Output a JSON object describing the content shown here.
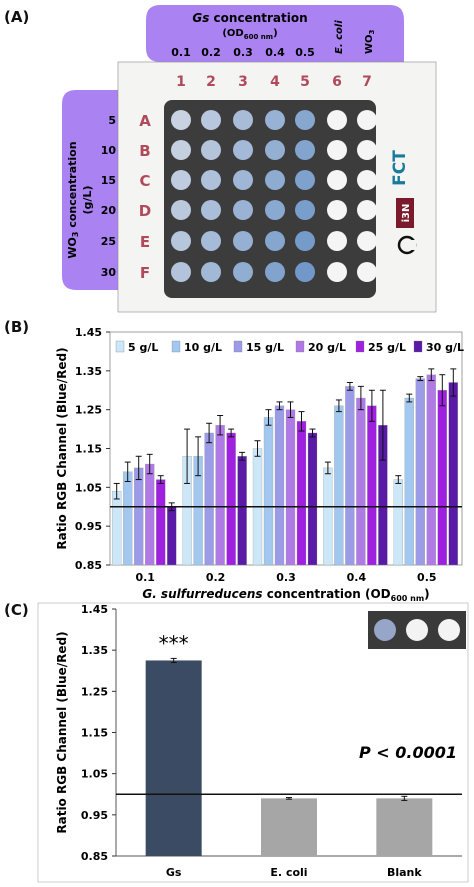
{
  "panels": {
    "a": "(A)",
    "b": "(B)",
    "c": "(C)"
  },
  "plate": {
    "top_title": "Gs concentration",
    "top_title_italic": "Gs",
    "top_title_rest": " concentration",
    "top_unit": "(OD",
    "top_unit_sub": "600 nm",
    "top_unit_close": ")",
    "top_values": [
      "0.1",
      "0.2",
      "0.3",
      "0.4",
      "0.5"
    ],
    "ecoli_label": "E. coli",
    "wo3_label": "WO",
    "wo3_sub": "3",
    "side_title": "WO",
    "side_title_sub": "3",
    "side_title_rest": " concentration",
    "side_title_unit": "(g/L)",
    "side_values": [
      "5",
      "10",
      "15",
      "20",
      "25",
      "30"
    ],
    "column_numbers": [
      "1",
      "2",
      "3",
      "4",
      "5",
      "6",
      "7"
    ],
    "row_letters": [
      "A",
      "B",
      "C",
      "D",
      "E",
      "F"
    ],
    "logo_1": "FCT",
    "logo_2": "i3N",
    "colors": {
      "purple": "#9b6cf0",
      "plate": "#3c3c3c",
      "label_red": "#b04a5a"
    }
  },
  "chart_data": [
    {
      "type": "bar",
      "ylabel": "Ratio RGB Channel (Blue/Red)",
      "xlabel_italic": "G. sulfurreducens",
      "xlabel_rest": " concentration (OD",
      "xlabel_sub": "600 nm",
      "xlabel_close": ")",
      "categories": [
        "0.1",
        "0.2",
        "0.3",
        "0.4",
        "0.5"
      ],
      "ylim": [
        0.85,
        1.45
      ],
      "yticks": [
        "0.85",
        "0.95",
        "1.05",
        "1.15",
        "1.25",
        "1.35",
        "1.45"
      ],
      "reference_line": 1.0,
      "legend_position": "top",
      "series": [
        {
          "name": "5 g/L",
          "color": "#cce7f7",
          "values": [
            1.04,
            1.13,
            1.15,
            1.1,
            1.07
          ],
          "errors": [
            0.02,
            0.07,
            0.02,
            0.015,
            0.01
          ]
        },
        {
          "name": "10 g/L",
          "color": "#a3c8ef",
          "values": [
            1.09,
            1.13,
            1.23,
            1.26,
            1.28
          ],
          "errors": [
            0.025,
            0.05,
            0.02,
            0.015,
            0.01
          ]
        },
        {
          "name": "15 g/L",
          "color": "#9b9be8",
          "values": [
            1.1,
            1.19,
            1.26,
            1.31,
            1.33
          ],
          "errors": [
            0.03,
            0.025,
            0.01,
            0.01,
            0.005
          ]
        },
        {
          "name": "20 g/L",
          "color": "#b07ae6",
          "values": [
            1.11,
            1.21,
            1.25,
            1.28,
            1.34
          ],
          "errors": [
            0.025,
            0.025,
            0.02,
            0.03,
            0.015
          ]
        },
        {
          "name": "25 g/L",
          "color": "#a020e0",
          "values": [
            1.07,
            1.19,
            1.22,
            1.26,
            1.3
          ],
          "errors": [
            0.01,
            0.01,
            0.025,
            0.04,
            0.04
          ]
        },
        {
          "name": "30 g/L",
          "color": "#5a1aa8",
          "values": [
            1.0,
            1.13,
            1.19,
            1.21,
            1.32
          ],
          "errors": [
            0.01,
            0.01,
            0.01,
            0.09,
            0.035
          ]
        }
      ]
    },
    {
      "type": "bar",
      "ylabel": "Ratio RGB Channel (Blue/Red)",
      "categories": [
        "Gs",
        "E. coli",
        "Blank"
      ],
      "values": [
        1.325,
        0.99,
        0.99
      ],
      "errors": [
        0.005,
        0.002,
        0.005
      ],
      "colors": [
        "#3b4b63",
        "#a6a6a6",
        "#a6a6a6"
      ],
      "ylim": [
        0.85,
        1.45
      ],
      "yticks": [
        "0.85",
        "0.95",
        "1.05",
        "1.15",
        "1.25",
        "1.35",
        "1.45"
      ],
      "reference_line": 1.0,
      "significance": "***",
      "annotation": "P < 0.0001"
    }
  ]
}
